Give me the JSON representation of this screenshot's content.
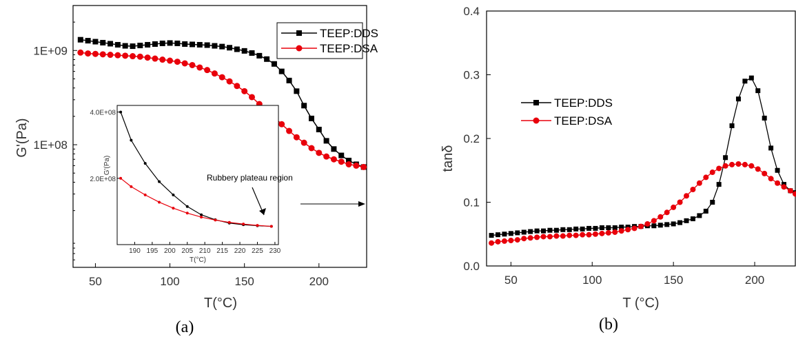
{
  "chart_data": [
    {
      "type": "line",
      "panel_caption": "(a)",
      "xlabel": "T(°C)",
      "ylabel": "G'(Pa)",
      "yscale": "log",
      "xlim": [
        35,
        232
      ],
      "ylim": [
        5000000,
        3000000000
      ],
      "x_ticks": [
        50,
        100,
        150,
        200
      ],
      "y_tick_labels": [
        "1E+08",
        "1E+09"
      ],
      "y_tick_values": [
        100000000,
        1000000000
      ],
      "legend": {
        "position": "top-right",
        "entries": [
          "TEEP:DDS",
          "TEEP:DSA"
        ]
      },
      "series": [
        {
          "name": "TEEP:DDS",
          "color": "#000000",
          "marker": "square",
          "x": [
            40,
            45,
            50,
            55,
            60,
            65,
            70,
            75,
            80,
            85,
            90,
            95,
            100,
            105,
            110,
            115,
            120,
            125,
            130,
            135,
            140,
            145,
            150,
            155,
            160,
            165,
            170,
            175,
            180,
            185,
            190,
            195,
            200,
            205,
            210,
            215,
            220,
            225,
            230
          ],
          "y": [
            1300000000,
            1270000000,
            1240000000,
            1210000000,
            1180000000,
            1150000000,
            1120000000,
            1110000000,
            1130000000,
            1150000000,
            1170000000,
            1190000000,
            1200000000,
            1190000000,
            1170000000,
            1160000000,
            1150000000,
            1140000000,
            1120000000,
            1100000000,
            1070000000,
            1030000000,
            990000000,
            940000000,
            880000000,
            810000000,
            720000000,
            600000000,
            480000000,
            370000000,
            260000000,
            190000000,
            145000000,
            110000000,
            90000000,
            77000000,
            68000000,
            62000000,
            58000000
          ]
        },
        {
          "name": "TEEP:DSA",
          "color": "#e8000b",
          "marker": "circle",
          "x": [
            40,
            45,
            50,
            55,
            60,
            65,
            70,
            75,
            80,
            85,
            90,
            95,
            100,
            105,
            110,
            115,
            120,
            125,
            130,
            135,
            140,
            145,
            150,
            155,
            160,
            165,
            170,
            175,
            180,
            185,
            190,
            195,
            200,
            205,
            210,
            215,
            220,
            225,
            230
          ],
          "y": [
            950000000,
            930000000,
            920000000,
            910000000,
            900000000,
            890000000,
            880000000,
            870000000,
            860000000,
            840000000,
            820000000,
            800000000,
            780000000,
            760000000,
            730000000,
            700000000,
            660000000,
            620000000,
            570000000,
            520000000,
            470000000,
            420000000,
            370000000,
            320000000,
            270000000,
            230000000,
            195000000,
            165000000,
            140000000,
            120000000,
            105000000,
            92000000,
            82000000,
            75000000,
            70000000,
            66000000,
            62000000,
            60000000,
            58000000
          ]
        }
      ],
      "inset": {
        "type": "line",
        "xlabel": "T(°C)",
        "ylabel": "G'(Pa)",
        "xlim": [
          185,
          231
        ],
        "ylim": [
          0,
          420000000
        ],
        "x_ticks": [
          190,
          195,
          200,
          205,
          210,
          215,
          220,
          225,
          230
        ],
        "y_tick_labels": [
          "2.0E+08",
          "4.0E+08"
        ],
        "y_tick_values": [
          200000000,
          400000000
        ],
        "annotation": "Rubbery plateau region",
        "series": [
          {
            "name": "TEEP:DDS",
            "color": "#000000",
            "x": [
              186,
              189,
              193,
              197,
              201,
              205,
              209,
              213,
              217,
              221,
              225,
              229
            ],
            "y": [
              400000000,
              315000000,
              245000000,
              190000000,
              150000000,
              115000000,
              90000000,
              75000000,
              65000000,
              60000000,
              57000000,
              55000000
            ]
          },
          {
            "name": "TEEP:DSA",
            "color": "#e8000b",
            "x": [
              186,
              189,
              193,
              197,
              201,
              205,
              209,
              213,
              217,
              221,
              225,
              229
            ],
            "y": [
              200000000,
              175000000,
              150000000,
              128000000,
              110000000,
              95000000,
              83000000,
              74000000,
              67000000,
              62000000,
              58000000,
              55000000
            ]
          }
        ]
      }
    },
    {
      "type": "line",
      "panel_caption": "(b)",
      "xlabel": "T (°C)",
      "ylabel": "tanδ",
      "xlim": [
        35,
        225
      ],
      "ylim": [
        0.0,
        0.4
      ],
      "x_ticks": [
        50,
        100,
        150,
        200
      ],
      "y_ticks": [
        0.0,
        0.1,
        0.2,
        0.3,
        0.4
      ],
      "y_tick_labels": [
        "0.0",
        "0.1",
        "0.2",
        "0.3",
        "0.4"
      ],
      "legend": {
        "position": "center-left",
        "entries": [
          "TEEP:DDS",
          "TEEP:DSA"
        ]
      },
      "series": [
        {
          "name": "TEEP:DDS",
          "color": "#000000",
          "marker": "square",
          "x": [
            38,
            42,
            46,
            50,
            54,
            58,
            62,
            66,
            70,
            74,
            78,
            82,
            86,
            90,
            94,
            98,
            102,
            106,
            110,
            114,
            118,
            122,
            126,
            130,
            134,
            138,
            142,
            146,
            150,
            154,
            158,
            162,
            166,
            170,
            174,
            178,
            182,
            186,
            190,
            194,
            198,
            202,
            206,
            210,
            214,
            218,
            222,
            225
          ],
          "y": [
            0.048,
            0.049,
            0.05,
            0.051,
            0.052,
            0.053,
            0.054,
            0.055,
            0.055,
            0.056,
            0.056,
            0.057,
            0.057,
            0.058,
            0.058,
            0.059,
            0.059,
            0.06,
            0.06,
            0.06,
            0.061,
            0.061,
            0.062,
            0.062,
            0.063,
            0.063,
            0.064,
            0.065,
            0.066,
            0.068,
            0.071,
            0.074,
            0.079,
            0.086,
            0.1,
            0.128,
            0.17,
            0.22,
            0.262,
            0.29,
            0.295,
            0.275,
            0.232,
            0.185,
            0.15,
            0.128,
            0.118,
            0.115
          ]
        },
        {
          "name": "TEEP:DSA",
          "color": "#e8000b",
          "marker": "circle",
          "x": [
            38,
            42,
            46,
            50,
            54,
            58,
            62,
            66,
            70,
            74,
            78,
            82,
            86,
            90,
            94,
            98,
            102,
            106,
            110,
            114,
            118,
            122,
            126,
            130,
            134,
            138,
            142,
            146,
            150,
            154,
            158,
            162,
            166,
            170,
            174,
            178,
            182,
            186,
            190,
            194,
            198,
            202,
            206,
            210,
            214,
            218,
            222,
            225
          ],
          "y": [
            0.036,
            0.038,
            0.039,
            0.04,
            0.041,
            0.043,
            0.044,
            0.045,
            0.046,
            0.046,
            0.047,
            0.047,
            0.048,
            0.048,
            0.049,
            0.049,
            0.05,
            0.051,
            0.052,
            0.053,
            0.055,
            0.057,
            0.059,
            0.062,
            0.066,
            0.071,
            0.077,
            0.084,
            0.092,
            0.1,
            0.11,
            0.12,
            0.13,
            0.139,
            0.147,
            0.153,
            0.157,
            0.159,
            0.16,
            0.159,
            0.157,
            0.152,
            0.145,
            0.137,
            0.13,
            0.124,
            0.118,
            0.113
          ]
        }
      ]
    }
  ]
}
